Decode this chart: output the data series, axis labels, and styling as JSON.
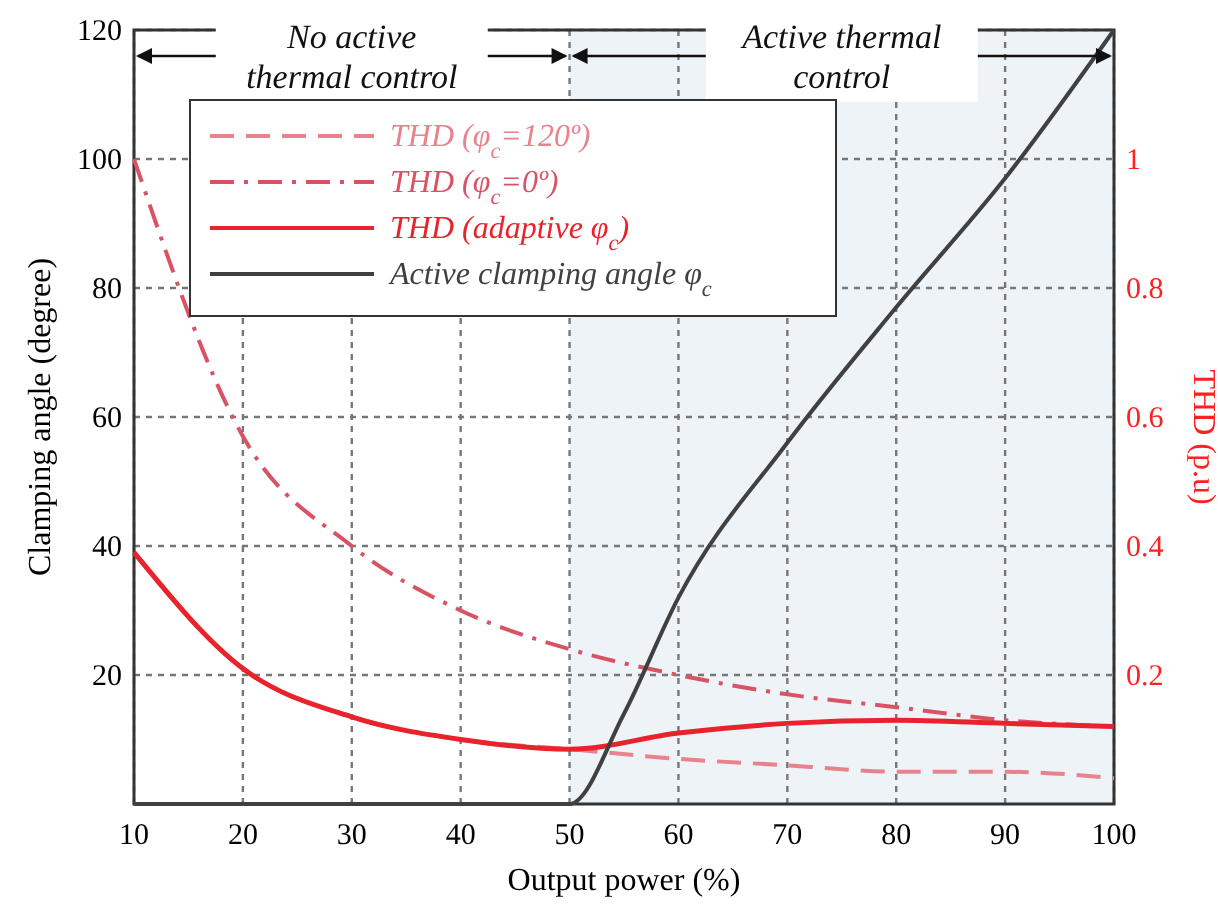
{
  "chart_data": {
    "type": "line",
    "xlabel": "Output power (%)",
    "ylabel": "Clamping angle (degree)",
    "y2label": "THD (p.u)",
    "x": [
      10,
      20,
      30,
      40,
      50,
      60,
      70,
      80,
      90,
      100
    ],
    "xlim": [
      10,
      100
    ],
    "xticks": [
      10,
      20,
      30,
      40,
      50,
      60,
      70,
      80,
      90,
      100
    ],
    "ylim": [
      0,
      120
    ],
    "yticks": [
      20,
      40,
      60,
      80,
      100,
      120
    ],
    "y2lim": [
      0,
      1.2
    ],
    "y2ticks": [
      0.2,
      0.4,
      0.6,
      0.8,
      1
    ],
    "grid": true,
    "legend": "top left",
    "series": [
      {
        "name": "THD (φ$_{c}$=120º)",
        "color": "#e8828c",
        "axis": "y2",
        "line_style": "dashed",
        "values": [
          0.39,
          0.21,
          0.135,
          0.1,
          0.085,
          0.07,
          0.06,
          0.05,
          0.05,
          0.04
        ]
      },
      {
        "name": "THD (φ$_{c}$=0º)",
        "color": "#d85464",
        "axis": "y2",
        "line_style": "dashdot",
        "values": [
          1.0,
          0.57,
          0.4,
          0.3,
          0.24,
          0.2,
          0.17,
          0.15,
          0.13,
          0.12
        ]
      },
      {
        "name": "THD (adaptive φ$_{c}$)",
        "color": "#e8232b",
        "axis": "y2",
        "line_style": "solid",
        "values": [
          0.39,
          0.21,
          0.135,
          0.1,
          0.085,
          0.11,
          0.125,
          0.13,
          0.125,
          0.12
        ]
      },
      {
        "name": "Active clamping angle φ$_{c}$",
        "color": "#404040",
        "axis": "y",
        "line_style": "solid",
        "x": [
          10,
          20,
          30,
          40,
          50,
          55,
          60,
          70,
          80,
          90,
          100
        ],
        "values": [
          0,
          0,
          0,
          0,
          0,
          14,
          32,
          56,
          77,
          97,
          120
        ]
      }
    ],
    "annotations": [
      "No active thermal control"
    ],
    "bands": [
      {
        "axis": "x",
        "from": 50,
        "to": 100,
        "label": "Active thermal control",
        "color": "#eef3f8"
      }
    ]
  }
}
